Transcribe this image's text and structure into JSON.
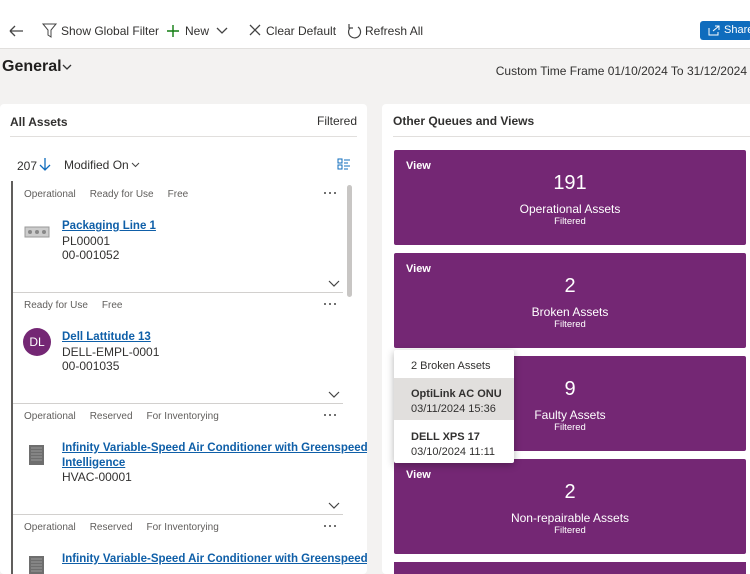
{
  "toolbar": {
    "items": [
      "Show Global Filter",
      "New",
      "Clear Default",
      "Refresh All"
    ],
    "share": "Share"
  },
  "header": {
    "title": "General",
    "time_frame": "Custom Time Frame 01/10/2024 To 31/12/2024"
  },
  "assets": {
    "title": "All Assets",
    "status": "Filtered",
    "count": "207",
    "sort": "Modified On",
    "cards": [
      {
        "tags": [
          "Operational",
          "Ready for Use",
          "Free"
        ],
        "name_lines": [
          "Packaging Line 1"
        ],
        "details": [
          "PL00001",
          "00-001052"
        ]
      },
      {
        "tags": [
          "Ready for Use",
          "Free"
        ],
        "avatar": "DL",
        "name_lines": [
          "Dell Lattitude 13"
        ],
        "details": [
          "DELL-EMPL-0001",
          "00-001035"
        ]
      },
      {
        "tags": [
          "Operational",
          "Reserved",
          "For Inventorying"
        ],
        "name_lines": [
          "Infinity Variable-Speed Air Conditioner with Greenspeed",
          "Intelligence"
        ],
        "details": [
          "HVAC-00001"
        ]
      },
      {
        "tags": [
          "Operational",
          "Reserved",
          "For Inventorying"
        ],
        "name_lines": [
          "Infinity Variable-Speed Air Conditioner with Greenspeed"
        ],
        "details": []
      }
    ]
  },
  "queues": {
    "title": "Other Queues and Views",
    "tiles": [
      {
        "view": "View",
        "count": "191",
        "label": "Operational Assets",
        "status": "Filtered"
      },
      {
        "view": "View",
        "count": "2",
        "label": "Broken Assets",
        "status": "Filtered"
      },
      {
        "count": "9",
        "label": "Faulty Assets",
        "status": "Filtered"
      },
      {
        "view": "View",
        "count": "2",
        "label": "Non-repairable Assets",
        "status": "Filtered"
      }
    ]
  },
  "popup": {
    "title": "2 Broken Assets",
    "items": [
      {
        "name": "OptiLink AC ONU",
        "date": "03/11/2024 15:36"
      },
      {
        "name": "DELL XPS 17",
        "date": "03/10/2024 11:11"
      }
    ]
  }
}
